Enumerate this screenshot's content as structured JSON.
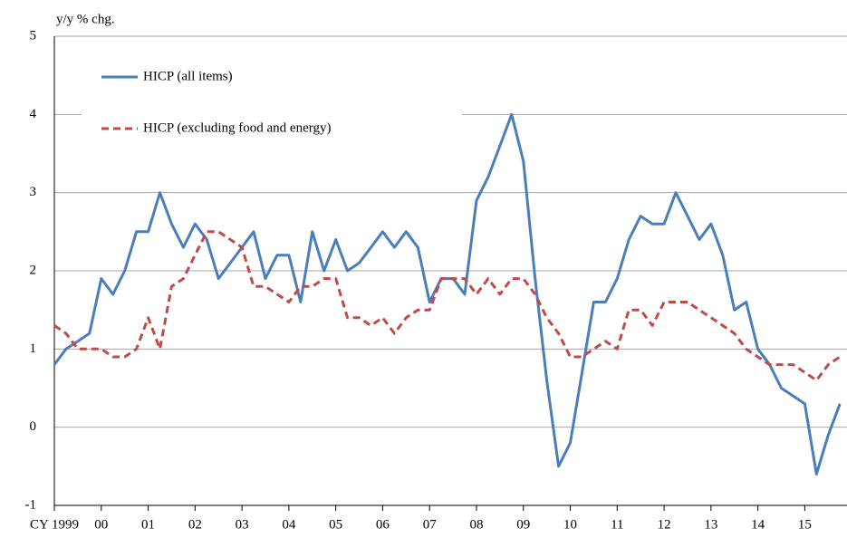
{
  "chart_data": {
    "type": "line",
    "y_label": "y/y % chg.",
    "x": [
      1999,
      1999.25,
      1999.5,
      1999.75,
      2000,
      2000.25,
      2000.5,
      2000.75,
      2001,
      2001.25,
      2001.5,
      2001.75,
      2002,
      2002.25,
      2002.5,
      2002.75,
      2003,
      2003.25,
      2003.5,
      2003.75,
      2004,
      2004.25,
      2004.5,
      2004.75,
      2005,
      2005.25,
      2005.5,
      2005.75,
      2006,
      2006.25,
      2006.5,
      2006.75,
      2007,
      2007.25,
      2007.5,
      2007.75,
      2008,
      2008.25,
      2008.5,
      2008.75,
      2009,
      2009.25,
      2009.5,
      2009.75,
      2010,
      2010.25,
      2010.5,
      2010.75,
      2011,
      2011.25,
      2011.5,
      2011.75,
      2012,
      2012.25,
      2012.5,
      2012.75,
      2013,
      2013.25,
      2013.5,
      2013.75,
      2014,
      2014.25,
      2014.5,
      2014.75,
      2015,
      2015.25,
      2015.5,
      2015.75
    ],
    "series": [
      {
        "name": "HICP (all items)",
        "color": "#4a7ebb",
        "style": "solid",
        "values": [
          0.8,
          1.0,
          1.1,
          1.2,
          1.9,
          1.7,
          2.0,
          2.5,
          2.5,
          3.0,
          2.6,
          2.3,
          2.6,
          2.4,
          1.9,
          2.1,
          2.3,
          2.5,
          1.9,
          2.2,
          2.2,
          1.6,
          2.5,
          2.0,
          2.4,
          2.0,
          2.1,
          2.3,
          2.5,
          2.3,
          2.5,
          2.3,
          1.6,
          1.9,
          1.9,
          1.7,
          2.9,
          3.2,
          3.6,
          4.0,
          3.4,
          1.9,
          0.6,
          -0.5,
          -0.2,
          0.7,
          1.6,
          1.6,
          1.9,
          2.4,
          2.7,
          2.6,
          2.6,
          3.0,
          2.7,
          2.4,
          2.6,
          2.2,
          1.5,
          1.6,
          1.0,
          0.8,
          0.5,
          0.4,
          0.3,
          -0.6,
          -0.1,
          0.3
        ]
      },
      {
        "name": "HICP (excluding food and energy)",
        "color": "#be4b48",
        "style": "dashed",
        "values": [
          1.3,
          1.2,
          1.0,
          1.0,
          1.0,
          0.9,
          0.9,
          1.0,
          1.4,
          1.0,
          1.8,
          1.9,
          2.2,
          2.5,
          2.5,
          2.4,
          2.3,
          1.8,
          1.8,
          1.7,
          1.6,
          1.8,
          1.8,
          1.9,
          1.9,
          1.4,
          1.4,
          1.3,
          1.4,
          1.2,
          1.4,
          1.5,
          1.5,
          1.9,
          1.9,
          1.9,
          1.7,
          1.9,
          1.7,
          1.9,
          1.9,
          1.7,
          1.4,
          1.2,
          0.9,
          0.9,
          1.0,
          1.1,
          1.0,
          1.5,
          1.5,
          1.3,
          1.6,
          1.6,
          1.6,
          1.5,
          1.4,
          1.3,
          1.2,
          1.0,
          0.9,
          0.8,
          0.8,
          0.8,
          0.7,
          0.6,
          0.8,
          0.9
        ]
      }
    ],
    "xlim": [
      1999,
      2015.9
    ],
    "xticks": [
      {
        "value": 1999,
        "label": "CY 1999"
      },
      {
        "value": 2000,
        "label": "00"
      },
      {
        "value": 2001,
        "label": "01"
      },
      {
        "value": 2002,
        "label": "02"
      },
      {
        "value": 2003,
        "label": "03"
      },
      {
        "value": 2004,
        "label": "04"
      },
      {
        "value": 2005,
        "label": "05"
      },
      {
        "value": 2006,
        "label": "06"
      },
      {
        "value": 2007,
        "label": "07"
      },
      {
        "value": 2008,
        "label": "08"
      },
      {
        "value": 2009,
        "label": "09"
      },
      {
        "value": 2010,
        "label": "10"
      },
      {
        "value": 2011,
        "label": "11"
      },
      {
        "value": 2012,
        "label": "12"
      },
      {
        "value": 2013,
        "label": "13"
      },
      {
        "value": 2014,
        "label": "14"
      },
      {
        "value": 2015,
        "label": "15"
      }
    ],
    "ylim": [
      -1,
      5
    ],
    "yticks": [
      -1,
      0,
      1,
      2,
      3,
      4,
      5
    ],
    "grid": true,
    "legend": "top-left"
  }
}
